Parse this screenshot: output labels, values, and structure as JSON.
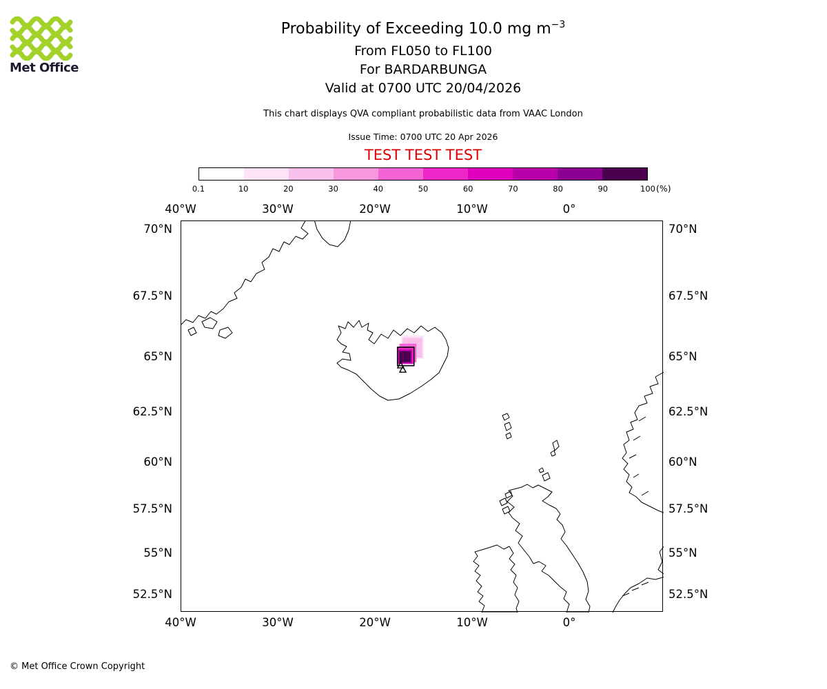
{
  "header": {
    "logo_text": "Met Office",
    "logo_green": "#a3d22a",
    "title_main": "Probability of Exceeding 10.0 mg m",
    "title_sup": "−3",
    "subtitle1": "From FL050 to FL100",
    "subtitle2": "For BARDARBUNGA",
    "subtitle3": "Valid at 0700 UTC 20/04/2026",
    "qva_note": "This chart displays QVA compliant probabilistic data from VAAC London",
    "issue_time": "Issue Time: 0700 UTC 20 Apr 2026",
    "test_banner": "TEST TEST TEST",
    "test_color": "#dd0000"
  },
  "colorbar": {
    "unit_label": "(%)",
    "ticks": [
      "0.1",
      "10",
      "20",
      "30",
      "40",
      "50",
      "60",
      "70",
      "80",
      "90",
      "100"
    ],
    "segments": [
      {
        "range": "0.1-10",
        "color": "#ffffff"
      },
      {
        "range": "10-20",
        "color": "#fce4f6"
      },
      {
        "range": "20-30",
        "color": "#f9c0ec"
      },
      {
        "range": "30-40",
        "color": "#f897de"
      },
      {
        "range": "40-50",
        "color": "#f464d4"
      },
      {
        "range": "50-60",
        "color": "#ee28c8"
      },
      {
        "range": "60-70",
        "color": "#df00bd"
      },
      {
        "range": "70-80",
        "color": "#b900aa"
      },
      {
        "range": "80-90",
        "color": "#8c0092"
      },
      {
        "range": "90-100",
        "color": "#4b004f"
      }
    ]
  },
  "map": {
    "lat_labels": [
      {
        "value": 70,
        "text": "70°N"
      },
      {
        "value": 67.5,
        "text": "67.5°N"
      },
      {
        "value": 65,
        "text": "65°N"
      },
      {
        "value": 62.5,
        "text": "62.5°N"
      },
      {
        "value": 60,
        "text": "60°N"
      },
      {
        "value": 57.5,
        "text": "57.5°N"
      },
      {
        "value": 55,
        "text": "55°N"
      },
      {
        "value": 52.5,
        "text": "52.5°N"
      }
    ],
    "lon_labels": [
      {
        "value": -40,
        "text": "40°W"
      },
      {
        "value": -30,
        "text": "30°W"
      },
      {
        "value": -20,
        "text": "20°W"
      },
      {
        "value": -10,
        "text": "10°W"
      },
      {
        "value": 0,
        "text": "0°"
      }
    ]
  },
  "chart_data": {
    "type": "heatmap",
    "title": "Probability of Exceeding 10.0 mg m^-3, From FL050 to FL100, For BARDARBUNGA, Valid at 0700 UTC 20/04/2026",
    "units": "%",
    "projection": "mercator",
    "extent": {
      "lon_min": -40,
      "lon_max": 9.6,
      "lat_min": 51.4,
      "lat_max": 70.3
    },
    "levels": [
      0.1,
      10,
      20,
      30,
      40,
      50,
      60,
      70,
      80,
      90,
      100
    ],
    "legend_position": "top",
    "grid": false,
    "ash_cells": [
      {
        "level_pct": "0.1-10",
        "lon_min": -17.35,
        "lon_max": -15.05,
        "lat_min": 64.95,
        "lat_max": 65.95,
        "color": "#fce4f6"
      },
      {
        "level_pct": "10-30",
        "lon_min": -17.2,
        "lon_max": -15.2,
        "lat_min": 65.0,
        "lat_max": 65.85,
        "color": "#f9c0ec"
      },
      {
        "level_pct": "30-50",
        "lon_min": -17.55,
        "lon_max": -15.8,
        "lat_min": 64.8,
        "lat_max": 65.6,
        "color": "#f464d4"
      },
      {
        "level_pct": "50-70",
        "lon_min": -17.7,
        "lon_max": -16.1,
        "lat_min": 64.72,
        "lat_max": 65.45,
        "color": "#ee28c8"
      },
      {
        "level_pct": "70-90",
        "lon_min": -17.65,
        "lon_max": -16.25,
        "lat_min": 64.75,
        "lat_max": 65.35,
        "color": "#b900aa"
      },
      {
        "level_pct": "90-100",
        "lon_min": -17.55,
        "lon_max": -16.4,
        "lat_min": 64.8,
        "lat_max": 65.28,
        "color": "#4b004f"
      }
    ],
    "contour_outline": {
      "lon_min": -17.75,
      "lon_max": -16.05,
      "lat_min": 64.65,
      "lat_max": 65.45,
      "color": "#000000"
    },
    "volcano_markers": [
      {
        "lat": 64.66,
        "lon": -17.42
      },
      {
        "lat": 64.47,
        "lon": -17.2
      }
    ]
  },
  "footer": {
    "copyright": "© Met Office Crown Copyright"
  }
}
